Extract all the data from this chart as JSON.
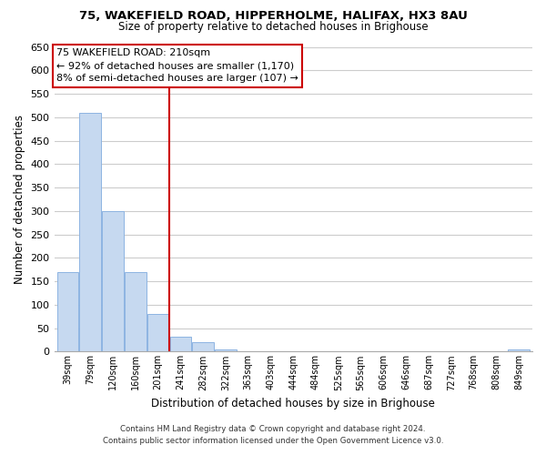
{
  "title1": "75, WAKEFIELD ROAD, HIPPERHOLME, HALIFAX, HX3 8AU",
  "title2": "Size of property relative to detached houses in Brighouse",
  "xlabel": "Distribution of detached houses by size in Brighouse",
  "ylabel": "Number of detached properties",
  "bar_categories": [
    "39sqm",
    "79sqm",
    "120sqm",
    "160sqm",
    "201sqm",
    "241sqm",
    "282sqm",
    "322sqm",
    "363sqm",
    "403sqm",
    "444sqm",
    "484sqm",
    "525sqm",
    "565sqm",
    "606sqm",
    "646sqm",
    "687sqm",
    "727sqm",
    "768sqm",
    "808sqm",
    "849sqm"
  ],
  "bar_values": [
    170,
    510,
    300,
    170,
    80,
    32,
    20,
    5,
    0,
    0,
    0,
    0,
    0,
    0,
    0,
    0,
    0,
    0,
    0,
    0,
    5
  ],
  "bar_color": "#c6d9f0",
  "bar_edge_color": "#8db4e2",
  "property_line_x": 4.5,
  "property_line_color": "#cc0000",
  "annotation_title": "75 WAKEFIELD ROAD: 210sqm",
  "annotation_line1": "← 92% of detached houses are smaller (1,170)",
  "annotation_line2": "8% of semi-detached houses are larger (107) →",
  "annotation_box_color": "#ffffff",
  "annotation_box_edge_color": "#cc0000",
  "ylim": [
    0,
    650
  ],
  "yticks": [
    0,
    50,
    100,
    150,
    200,
    250,
    300,
    350,
    400,
    450,
    500,
    550,
    600,
    650
  ],
  "footer_line1": "Contains HM Land Registry data © Crown copyright and database right 2024.",
  "footer_line2": "Contains public sector information licensed under the Open Government Licence v3.0.",
  "background_color": "#ffffff",
  "grid_color": "#cccccc"
}
